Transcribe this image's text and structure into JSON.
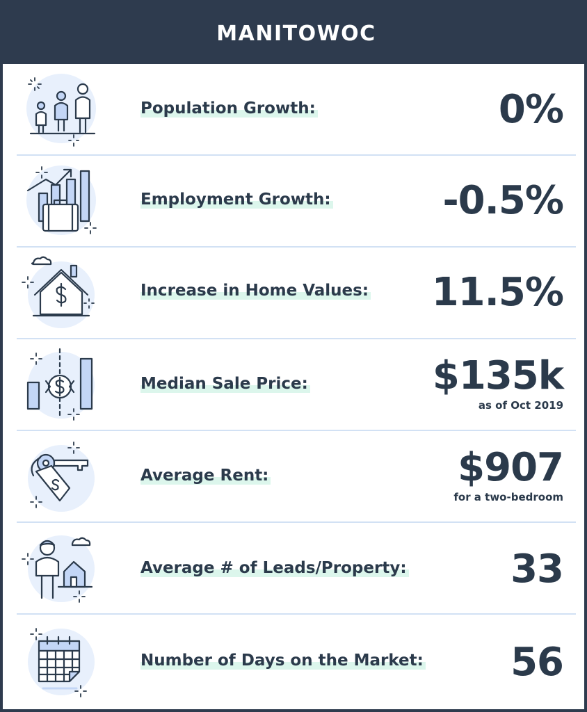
{
  "header": {
    "title": "MANITOWOC"
  },
  "metrics": [
    {
      "icon": "family-icon",
      "label": "Population Growth:",
      "value": "0%"
    },
    {
      "icon": "employment-chart-icon",
      "label": "Employment Growth:",
      "value": "-0.5%"
    },
    {
      "icon": "house-dollar-icon",
      "label": "Increase in Home Values:",
      "value": "11.5%"
    },
    {
      "icon": "price-bars-icon",
      "label": "Median Sale Price:",
      "value": "$135k",
      "note": "as  of Oct 2019"
    },
    {
      "icon": "key-tag-icon",
      "label": "Average Rent:",
      "value": "$907",
      "note": "for a two-bedroom"
    },
    {
      "icon": "person-house-icon",
      "label": "Average # of Leads/Property:",
      "value": "33"
    },
    {
      "icon": "calendar-icon",
      "label": "Number of Days on the Market:",
      "value": "56"
    }
  ],
  "colors": {
    "header_bg": "#2e3b4e",
    "text": "#2b3a4b",
    "divider": "#d2e1f4",
    "icon_fill": "#c3d6f6",
    "label_highlight": "#dcf6ec"
  }
}
